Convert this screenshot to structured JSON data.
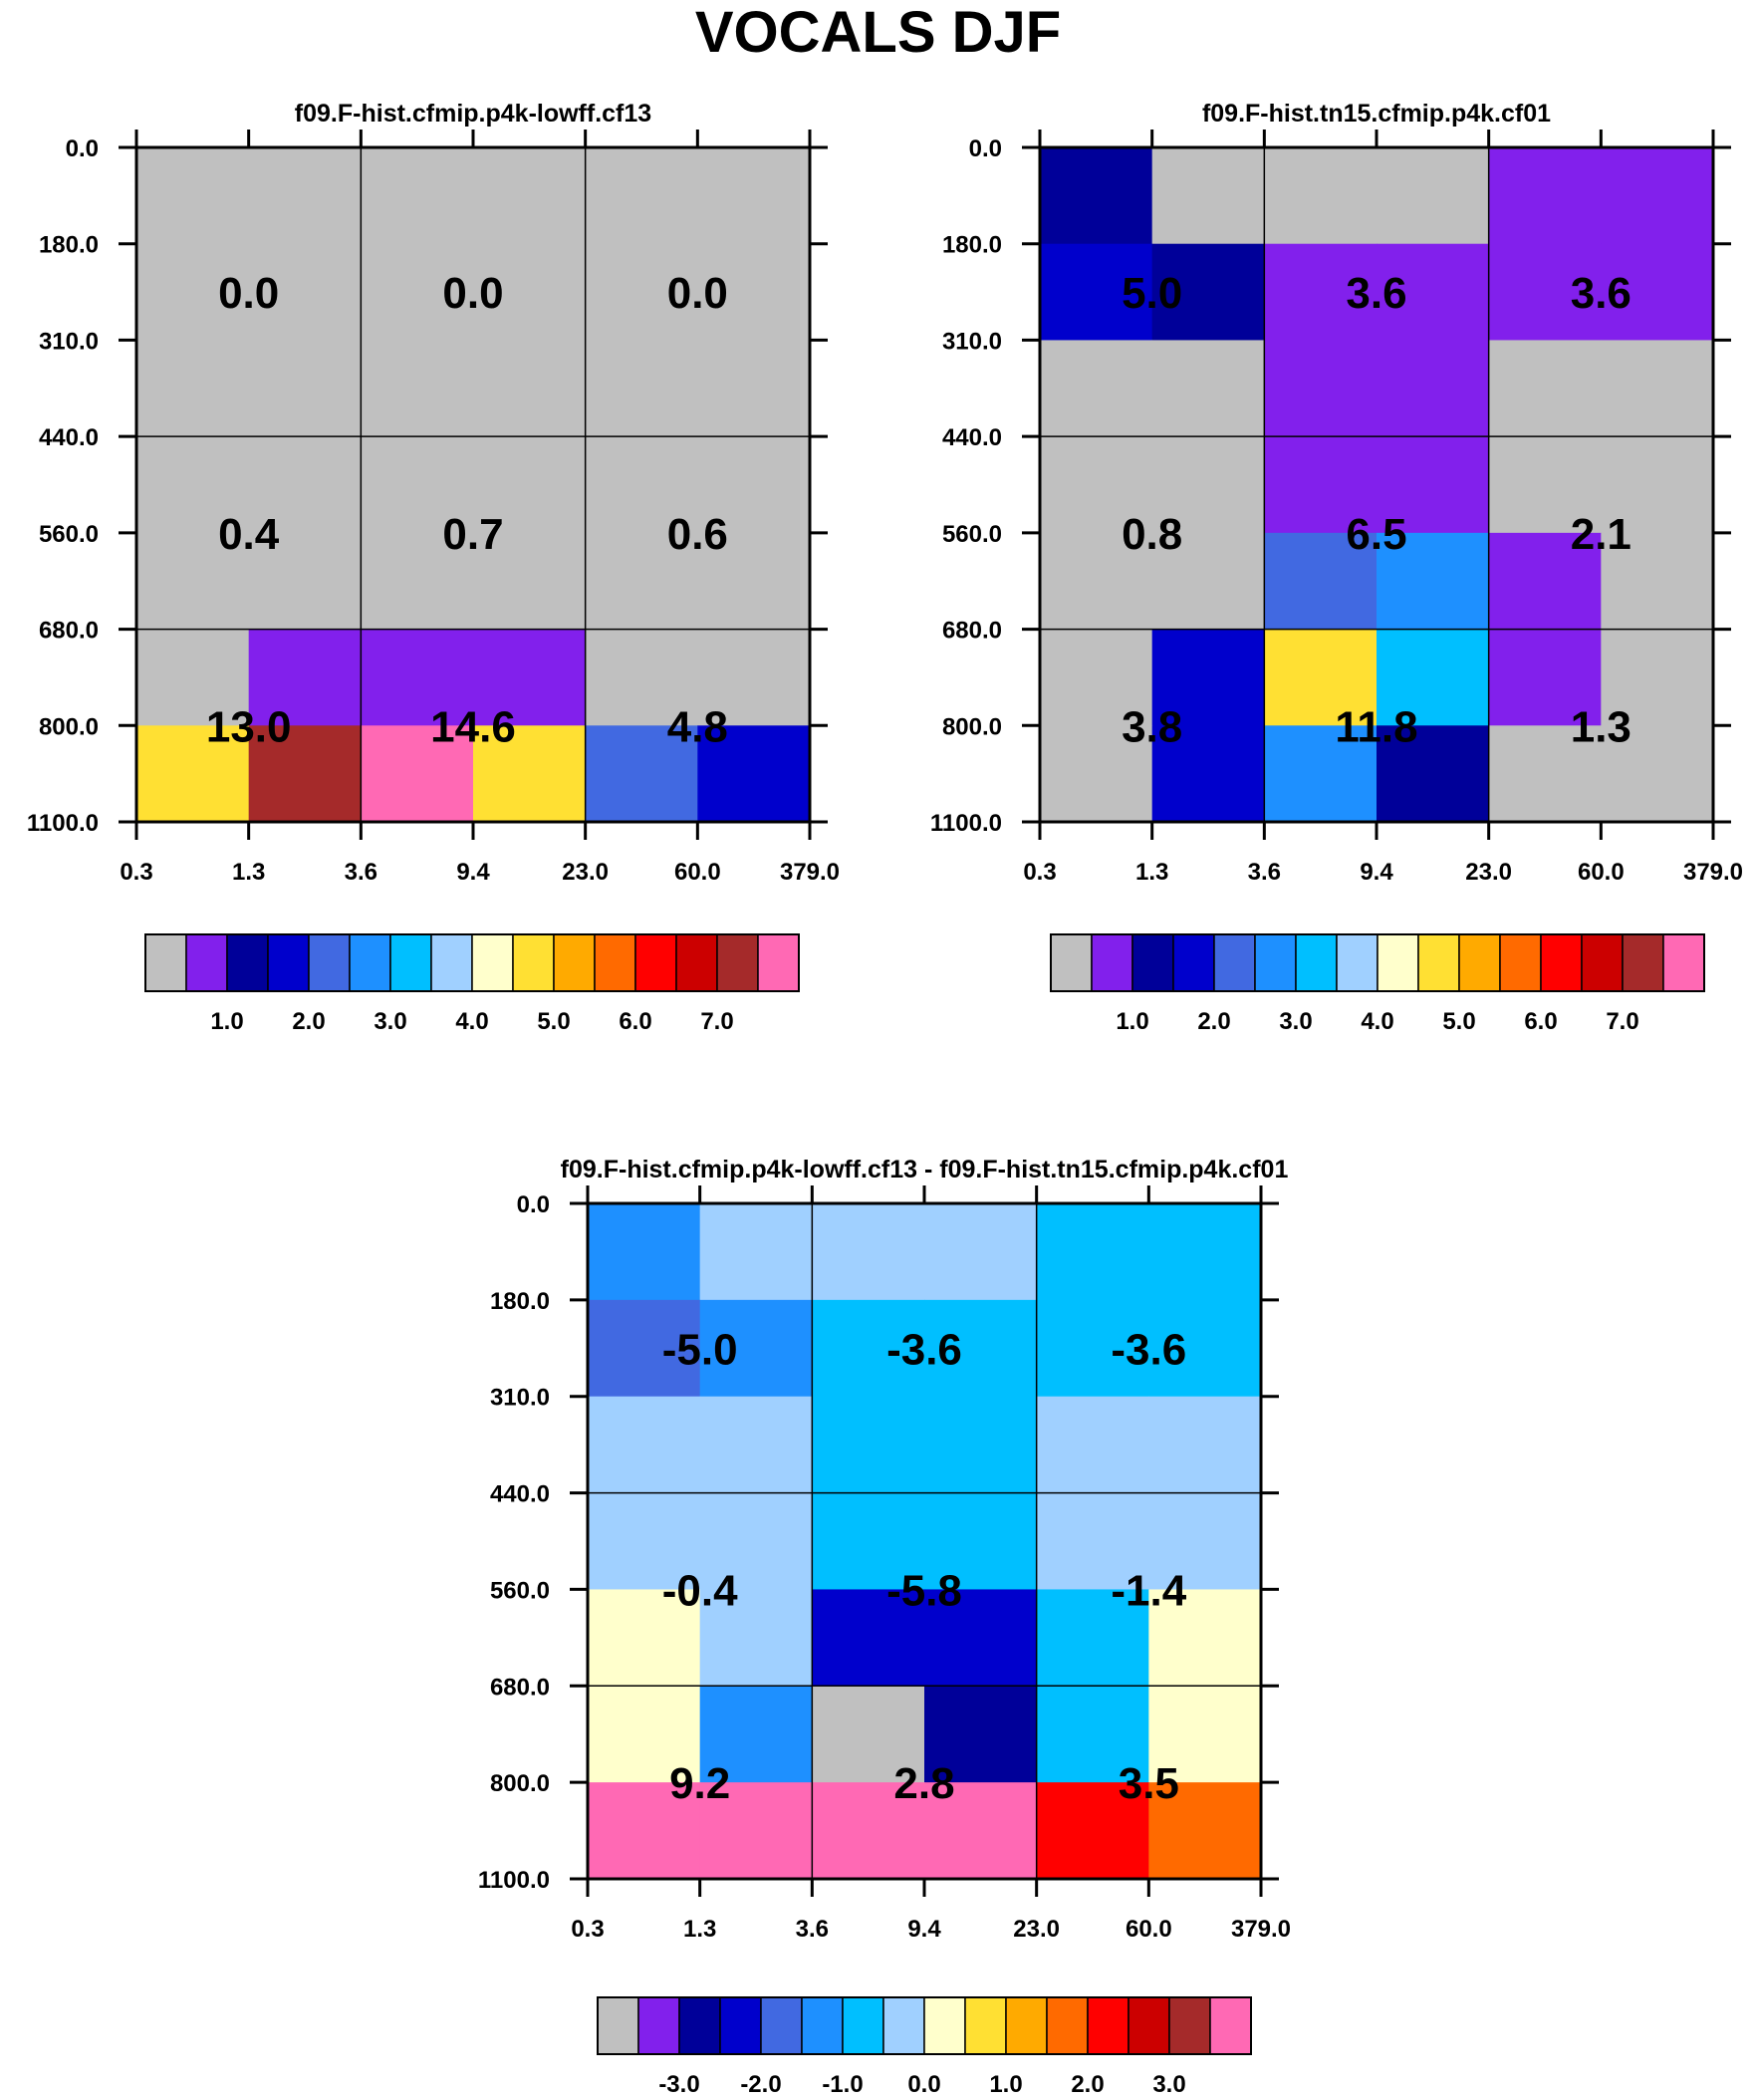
{
  "title": "VOCALS DJF",
  "colors": {
    "palette": [
      "#c0c0c0",
      "#8220ec",
      "#000099",
      "#0000cc",
      "#4169e1",
      "#1e90ff",
      "#00bfff",
      "#a0d0ff",
      "#ffffcc",
      "#ffe033",
      "#ffaa00",
      "#ff6a00",
      "#ff0000",
      "#cc0000",
      "#a52a2a",
      "#ff69b4"
    ]
  },
  "chart_data": [
    {
      "type": "heatmap",
      "title": "f09.F-hist.cfmip.p4k-lowff.cf13",
      "x_ticks": [
        "0.3",
        "1.3",
        "3.6",
        "9.4",
        "23.0",
        "60.0",
        "379.0"
      ],
      "y_ticks": [
        "0.0",
        "180.0",
        "310.0",
        "440.0",
        "560.0",
        "680.0",
        "800.0",
        "1100.0"
      ],
      "cells": [
        [
          0,
          0,
          0,
          0,
          0,
          0
        ],
        [
          0,
          0,
          0,
          0,
          0,
          0
        ],
        [
          0,
          0,
          0,
          0,
          0,
          0
        ],
        [
          0,
          0,
          0,
          0,
          0,
          0
        ],
        [
          0,
          0,
          0,
          0,
          0,
          0
        ],
        [
          0,
          1,
          1,
          1,
          0,
          0
        ],
        [
          9,
          14,
          15,
          9,
          4,
          3
        ]
      ],
      "labels": [
        {
          "col": 0,
          "row": 1,
          "text": "0.0"
        },
        {
          "col": 1,
          "row": 1,
          "text": "0.0"
        },
        {
          "col": 2,
          "row": 1,
          "text": "0.0"
        },
        {
          "col": 0,
          "row": 2,
          "text": "0.4"
        },
        {
          "col": 1,
          "row": 2,
          "text": "0.7"
        },
        {
          "col": 2,
          "row": 2,
          "text": "0.6"
        },
        {
          "col": 0,
          "row": 3,
          "text": "13.0"
        },
        {
          "col": 1,
          "row": 3,
          "text": "14.6"
        },
        {
          "col": 2,
          "row": 3,
          "text": "4.8"
        }
      ],
      "colorbar_labels": [
        "1.0",
        "2.0",
        "3.0",
        "4.0",
        "5.0",
        "6.0",
        "7.0"
      ]
    },
    {
      "type": "heatmap",
      "title": "f09.F-hist.tn15.cfmip.p4k.cf01",
      "x_ticks": [
        "0.3",
        "1.3",
        "3.6",
        "9.4",
        "23.0",
        "60.0",
        "379.0"
      ],
      "y_ticks": [
        "0.0",
        "180.0",
        "310.0",
        "440.0",
        "560.0",
        "680.0",
        "800.0",
        "1100.0"
      ],
      "cells": [
        [
          2,
          0,
          0,
          0,
          1,
          1
        ],
        [
          3,
          2,
          1,
          1,
          1,
          1
        ],
        [
          0,
          0,
          1,
          1,
          0,
          0
        ],
        [
          0,
          0,
          1,
          1,
          0,
          0
        ],
        [
          0,
          0,
          4,
          5,
          1,
          0
        ],
        [
          0,
          3,
          9,
          6,
          1,
          0
        ],
        [
          0,
          3,
          5,
          2,
          0,
          0
        ]
      ],
      "labels": [
        {
          "col": 0,
          "row": 1,
          "text": "5.0"
        },
        {
          "col": 1,
          "row": 1,
          "text": "3.6"
        },
        {
          "col": 2,
          "row": 1,
          "text": "3.6"
        },
        {
          "col": 0,
          "row": 2,
          "text": "0.8"
        },
        {
          "col": 1,
          "row": 2,
          "text": "6.5"
        },
        {
          "col": 2,
          "row": 2,
          "text": "2.1"
        },
        {
          "col": 0,
          "row": 3,
          "text": "3.8"
        },
        {
          "col": 1,
          "row": 3,
          "text": "11.8"
        },
        {
          "col": 2,
          "row": 3,
          "text": "1.3"
        }
      ],
      "colorbar_labels": [
        "1.0",
        "2.0",
        "3.0",
        "4.0",
        "5.0",
        "6.0",
        "7.0"
      ]
    },
    {
      "type": "heatmap",
      "title": "f09.F-hist.cfmip.p4k-lowff.cf13 - f09.F-hist.tn15.cfmip.p4k.cf01",
      "x_ticks": [
        "0.3",
        "1.3",
        "3.6",
        "9.4",
        "23.0",
        "60.0",
        "379.0"
      ],
      "y_ticks": [
        "0.0",
        "180.0",
        "310.0",
        "440.0",
        "560.0",
        "680.0",
        "800.0",
        "1100.0"
      ],
      "cells": [
        [
          5,
          7,
          7,
          7,
          6,
          6
        ],
        [
          4,
          5,
          6,
          6,
          6,
          6
        ],
        [
          7,
          7,
          6,
          6,
          7,
          7
        ],
        [
          7,
          7,
          6,
          6,
          7,
          7
        ],
        [
          8,
          7,
          3,
          3,
          6,
          8
        ],
        [
          8,
          5,
          0,
          2,
          6,
          8
        ],
        [
          15,
          15,
          15,
          15,
          12,
          11
        ]
      ],
      "labels": [
        {
          "col": 0,
          "row": 1,
          "text": "-5.0"
        },
        {
          "col": 1,
          "row": 1,
          "text": "-3.6"
        },
        {
          "col": 2,
          "row": 1,
          "text": "-3.6"
        },
        {
          "col": 0,
          "row": 2,
          "text": "-0.4"
        },
        {
          "col": 1,
          "row": 2,
          "text": "-5.8"
        },
        {
          "col": 2,
          "row": 2,
          "text": "-1.4"
        },
        {
          "col": 0,
          "row": 3,
          "text": "9.2"
        },
        {
          "col": 1,
          "row": 3,
          "text": "2.8"
        },
        {
          "col": 2,
          "row": 3,
          "text": "3.5"
        }
      ],
      "colorbar_labels": [
        "-3.0",
        "-2.0",
        "-1.0",
        "0.0",
        "1.0",
        "2.0",
        "3.0"
      ]
    }
  ]
}
